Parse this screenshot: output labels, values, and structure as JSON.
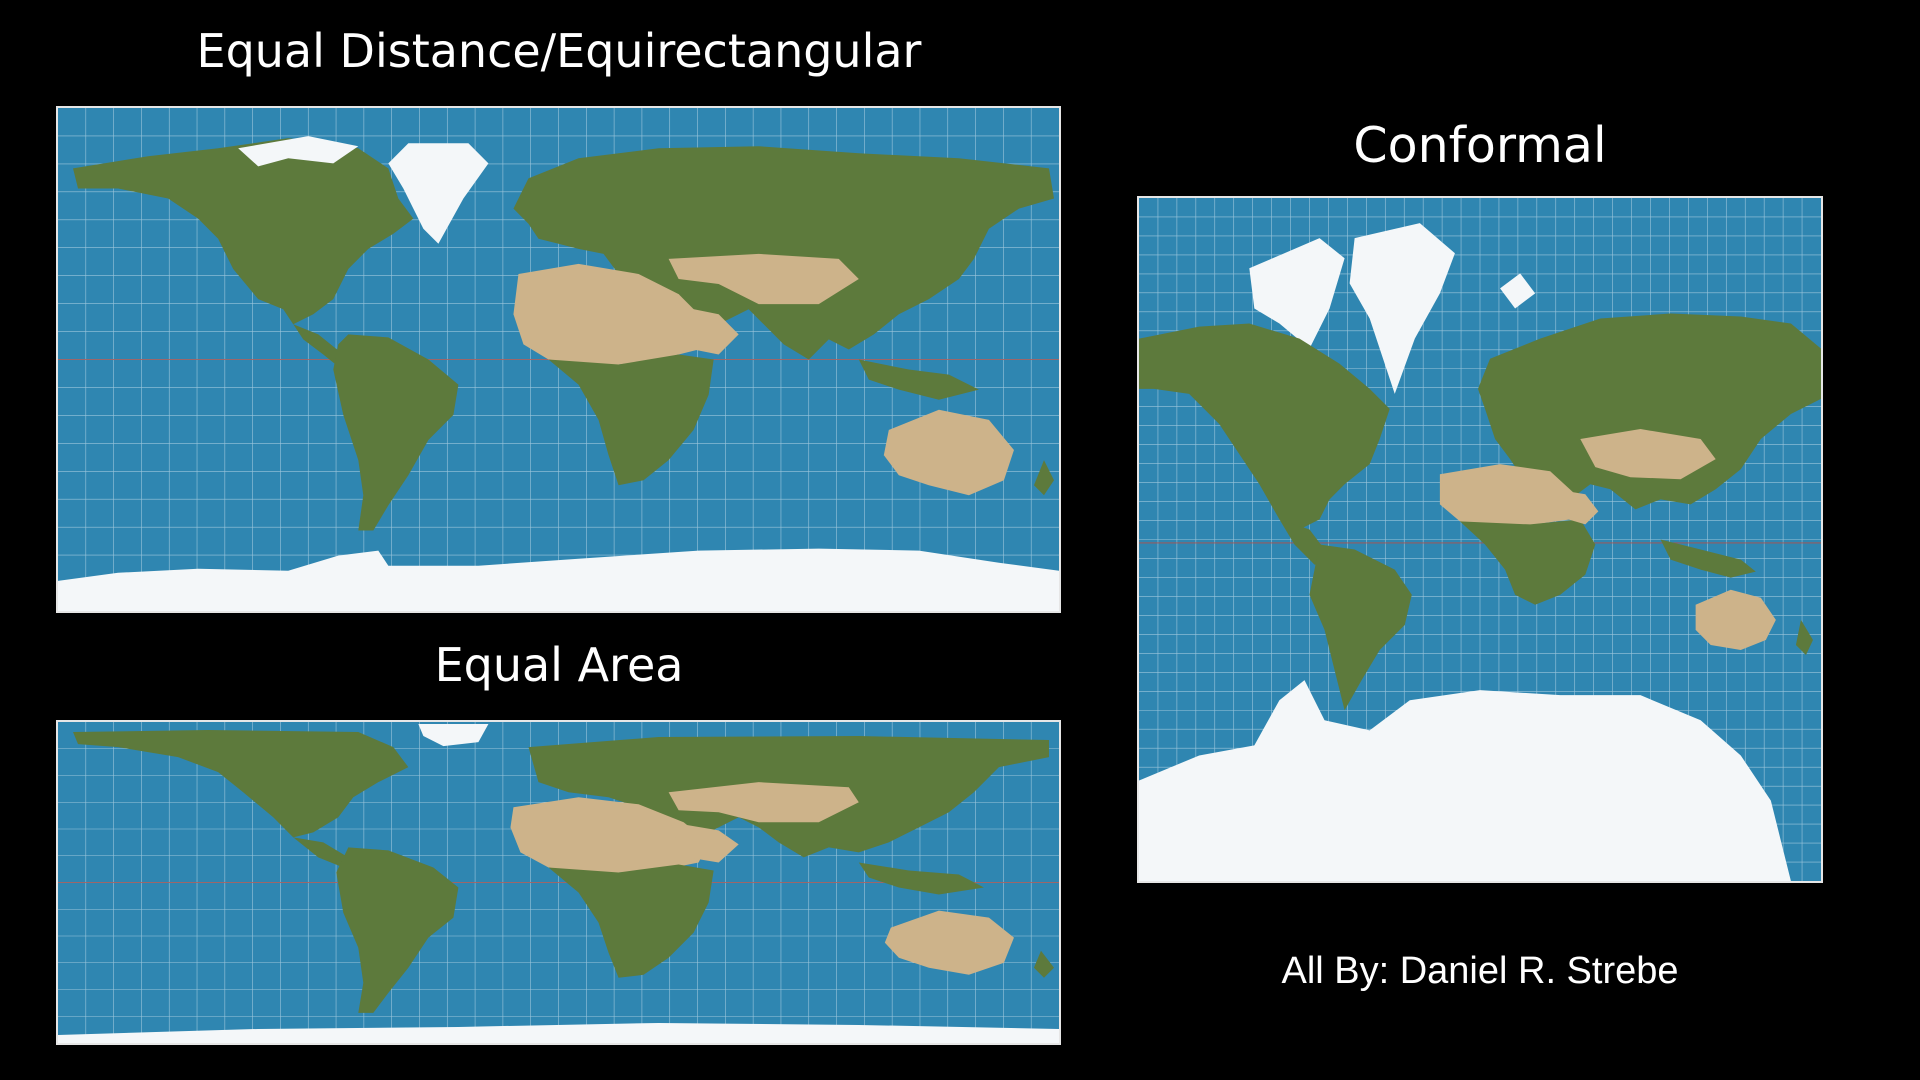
{
  "titles": {
    "equal_distance": "Equal Distance/Equirectangular",
    "equal_area": "Equal Area",
    "conformal": "Conformal"
  },
  "credit": "All By: Daniel R. Strebe",
  "colors": {
    "background": "#000000",
    "ocean": "#2f86b1",
    "land_green": "#5d7a3c",
    "land_desert": "#cdb38a",
    "ice": "#f4f7f9",
    "graticule": "#9cc6dc",
    "equator": "#b0504a"
  }
}
